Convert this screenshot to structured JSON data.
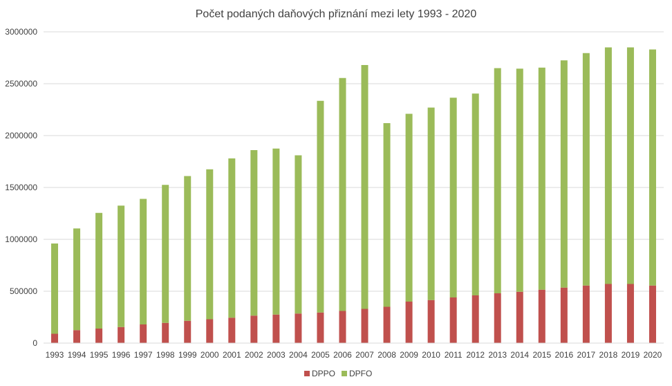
{
  "chart_data": {
    "type": "bar",
    "stacked": true,
    "title": "Počet podaných daňových přiznání mezi lety 1993    - 2020",
    "xlabel": "",
    "ylabel": "",
    "categories": [
      "1993",
      "1994",
      "1995",
      "1996",
      "1997",
      "1998",
      "1999",
      "2000",
      "2001",
      "2002",
      "2003",
      "2004",
      "2005",
      "2006",
      "2007",
      "2008",
      "2009",
      "2010",
      "2011",
      "2012",
      "2013",
      "2014",
      "2015",
      "2016",
      "2017",
      "2018",
      "2019",
      "2020"
    ],
    "ylim": [
      0,
      3000000
    ],
    "yticks": [
      "0",
      "500000",
      "1000000",
      "1500000",
      "2000000",
      "2500000",
      "3000000"
    ],
    "grid": true,
    "legend_position": "bottom",
    "series": [
      {
        "name": "DPPO",
        "color": "#c0504d",
        "values": [
          90000,
          125000,
          140000,
          155000,
          180000,
          195000,
          215000,
          230000,
          245000,
          265000,
          275000,
          285000,
          295000,
          310000,
          330000,
          350000,
          400000,
          415000,
          440000,
          460000,
          480000,
          495000,
          515000,
          535000,
          555000,
          570000,
          570000,
          555000
        ]
      },
      {
        "name": "DPFO",
        "color": "#9bbb59",
        "values": [
          870000,
          980000,
          1115000,
          1170000,
          1210000,
          1330000,
          1395000,
          1445000,
          1535000,
          1595000,
          1600000,
          1525000,
          2040000,
          2245000,
          2350000,
          1770000,
          1810000,
          1855000,
          1925000,
          1945000,
          2170000,
          2150000,
          2140000,
          2190000,
          2240000,
          2280000,
          2280000,
          2275000
        ]
      }
    ]
  }
}
